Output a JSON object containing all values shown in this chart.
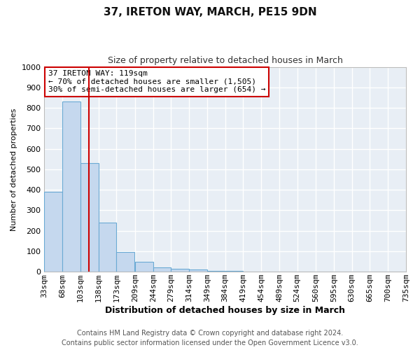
{
  "title": "37, IRETON WAY, MARCH, PE15 9DN",
  "subtitle": "Size of property relative to detached houses in March",
  "xlabel": "Distribution of detached houses by size in March",
  "ylabel": "Number of detached properties",
  "bar_color": "#c5d8ee",
  "bar_edge_color": "#6aaad4",
  "plot_bg_color": "#e8eef5",
  "fig_bg_color": "#ffffff",
  "grid_color": "#ffffff",
  "red_line_x": 119,
  "annotation_line1": "37 IRETON WAY: 119sqm",
  "annotation_line2": "← 70% of detached houses are smaller (1,505)",
  "annotation_line3": "30% of semi-detached houses are larger (654) →",
  "annotation_box_color": "#ffffff",
  "annotation_box_edge": "#cc0000",
  "ylim": [
    0,
    1000
  ],
  "bin_edges": [
    33,
    68,
    103,
    138,
    173,
    209,
    244,
    279,
    314,
    349,
    384,
    419,
    454,
    489,
    524,
    560,
    595,
    630,
    665,
    700,
    735
  ],
  "bar_heights": [
    390,
    830,
    530,
    240,
    95,
    50,
    20,
    13,
    10,
    5,
    3,
    2,
    0,
    0,
    0,
    0,
    0,
    0,
    0,
    0
  ],
  "footer_line1": "Contains HM Land Registry data © Crown copyright and database right 2024.",
  "footer_line2": "Contains public sector information licensed under the Open Government Licence v3.0.",
  "title_fontsize": 11,
  "subtitle_fontsize": 9,
  "xlabel_fontsize": 9,
  "ylabel_fontsize": 8,
  "tick_fontsize": 8,
  "annotation_fontsize": 8,
  "footer_fontsize": 7
}
